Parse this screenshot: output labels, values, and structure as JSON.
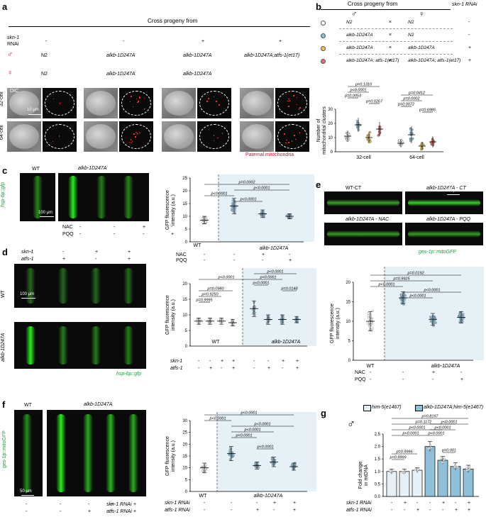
{
  "panel_a": {
    "letter": "a",
    "header": "Cross progeny from",
    "row_labels": {
      "rnai_l1": "skn-1",
      "rnai_l2": "RNAi",
      "male": "♂",
      "herm": "♀",
      "cell32": "32-cell",
      "cell64": "64-cell"
    },
    "rnai": [
      "-",
      "-",
      "+",
      "+"
    ],
    "male": [
      "N2",
      "alkb-1D247A",
      "alkb-1D247A",
      "alkb-1D247A;atfs-1(et17)"
    ],
    "herm": [
      "N2",
      "alkb-1D247A",
      "alkb-1D247A",
      ""
    ],
    "dic_label": "DIC",
    "scale": "10 μm",
    "mito_label": "Paternal mitochondria"
  },
  "panel_b": {
    "letter": "b",
    "header": "Cross progeny from",
    "col_male": "♂",
    "col_herm": "♀",
    "col_rnai": "skn-1 RNAi",
    "rows": [
      {
        "male": "N2",
        "herm": "N2",
        "rnai": "-",
        "color": "#ffffff"
      },
      {
        "male": "alkb-1D247A",
        "herm": "N2",
        "rnai": "-",
        "color": "#8fbfd9"
      },
      {
        "male": "alkb-1D247A",
        "herm": "alkb-1D247A",
        "rnai": "+",
        "color": "#f5c35a"
      },
      {
        "male": "alkb-1D247A; atfs-1(et17)",
        "herm": "alkb-1D247A; atfs-1(et17)",
        "rnai": "+",
        "color": "#e8736b"
      }
    ],
    "cross": "×",
    "ylabel1": "Number of",
    "ylabel2": "mitochondrial clusters",
    "pvals": [
      "p=0.1310",
      "p<0.0001",
      "p=0.0053",
      "p=0.0267",
      "p=0.0412",
      "p=0.0002",
      "p=0.0072",
      "p=0.6985"
    ],
    "groups": [
      "32-cell",
      "64-cell"
    ]
  },
  "panel_c": {
    "letter": "c",
    "wt": "WT",
    "mut": "alkb-1D247A",
    "reporter": "hsp-6p::gfp",
    "scale": "100 μm",
    "nac": "NAC",
    "pqq": "PQQ",
    "nac_vals": [
      "-",
      "-",
      "+",
      "-"
    ],
    "pqq_vals": [
      "-",
      "-",
      "-",
      "+"
    ],
    "ylabel1": "GFP fluorescence",
    "ylabel2": "intensity (a.u.)",
    "pvals": [
      "p=0.0002",
      "p<0.0001",
      "p<0.0001",
      "p<0.0001"
    ],
    "wt_tag": "WT",
    "mut_tag": "alkb-1D247A"
  },
  "panel_d": {
    "letter": "d",
    "skn": "skn-1",
    "atfs": "atfs-1",
    "skn_vals": [
      "-",
      "-",
      "+",
      "+"
    ],
    "atfs_vals": [
      "-",
      "+",
      "-",
      "+"
    ],
    "wt": "WT",
    "mut": "alkb-1D247A",
    "reporter": "hsp-6p::gfp",
    "scale": "100 μm",
    "ylabel1": "GFP fluorescence",
    "ylabel2": "intensity (a.u.)",
    "pvals": [
      "p<0.0001",
      "p=0.0980",
      "p=0.9250",
      "p=0.9995",
      "p<0.0001",
      "p<0.0001",
      "p<0.0001",
      "p=0.0148"
    ],
    "chart_skn": [
      "-",
      "-",
      "+",
      "+",
      "-",
      "-",
      "+",
      "+"
    ],
    "chart_atfs": [
      "-",
      "+",
      "-",
      "+",
      "-",
      "+",
      "-",
      "+"
    ],
    "wt_tag": "WT",
    "mut_tag": "alkb-1D247A"
  },
  "panel_e": {
    "letter": "e",
    "labels": [
      "WT-CT",
      "alkb-1D247A - CT",
      "alkb-1D247A - NAC",
      "alkb-1D247A - PQQ"
    ],
    "scale": "50 μm",
    "reporter": "ges-1p::mitoGFP",
    "ylabel1": "GFP fluorescence",
    "ylabel2": "intensity (a.u.)",
    "pvals": [
      "p=0.0192",
      "p=0.9925",
      "p<0.0001",
      "p<0.0001",
      "p<0.0001"
    ],
    "nac": "NAC",
    "pqq": "PQQ",
    "nac_vals": [
      "-",
      "-",
      "+",
      "-"
    ],
    "pqq_vals": [
      "-",
      "-",
      "-",
      "+"
    ],
    "wt_tag": "WT",
    "mut_tag": "alkb-1D247A"
  },
  "panel_f": {
    "letter": "f",
    "wt": "WT",
    "mut": "alkb-1D247A",
    "reporter": "ges-1p::mitoGFP",
    "scale": "50 μm",
    "skn": "skn-1 RNAi",
    "atfs": "atfs-1 RNAi",
    "skn_vals": [
      "-",
      "-",
      "-",
      "+",
      "+"
    ],
    "atfs_vals": [
      "-",
      "-",
      "+",
      "-",
      "+"
    ],
    "ylabel1": "GFP fluorescence",
    "ylabel2": "intensity (a.u.)",
    "pvals": [
      "p<0.0001",
      "p<0.0001",
      "p<0.0001",
      "p<0.0001",
      "p<0.0001",
      "p<0.0001"
    ],
    "chart_skn": [
      "-",
      "-",
      "-",
      "+",
      "+"
    ],
    "chart_atfs": [
      "-",
      "-",
      "+",
      "-",
      "+"
    ],
    "wt_tag": "WT",
    "mut_tag": "alkb-1D247A"
  },
  "panel_g": {
    "letter": "g",
    "legend1": "him-5(e1467)",
    "legend2": "alkb-1D247A;him-5(e1467)",
    "male": "♂",
    "ylabel1": "Fold change",
    "ylabel2": "in mtDNA",
    "skn": "skn-1 RNAi",
    "atfs": "atfs-1 RNAi",
    "skn_vals": [
      "-",
      "+",
      "-",
      "-",
      "+",
      "-",
      "+"
    ],
    "atfs_vals": [
      "-",
      "-",
      "+",
      "-",
      "-",
      "+",
      "+"
    ],
    "pvals": [
      "p=0.8197",
      "p=0.1172",
      "p<0.0001",
      "p<0.0001",
      "p<0.0001",
      "p<0.0001",
      "p<0.0001",
      "p=0.9996",
      "p=0.9999",
      "p=0.001"
    ]
  },
  "chart_data": [
    {
      "type": "scatter",
      "panel": "b",
      "ylabel": "Number of mitochondrial clusters",
      "ylim": [
        0,
        30
      ],
      "yticks": [
        0,
        10,
        20,
        30
      ],
      "categories": [
        "32-cell",
        "64-cell"
      ],
      "series": [
        {
          "name": "N2 × N2",
          "means": [
            11,
            6
          ],
          "sd": [
            4,
            3
          ]
        },
        {
          "name": "alkb-1D247A × N2",
          "means": [
            19,
            12
          ],
          "sd": [
            5,
            6
          ]
        },
        {
          "name": "alkb-1D247A × alkb-1D247A",
          "means": [
            10,
            4
          ],
          "sd": [
            4,
            3
          ]
        },
        {
          "name": "alkb-1D247A; atfs-1(et17) × alkb-1D247A; atfs-1(et17)",
          "means": [
            16,
            7
          ],
          "sd": [
            5,
            4
          ]
        }
      ]
    },
    {
      "type": "scatter",
      "panel": "c",
      "ylabel": "GFP fluorescence intensity (a.u.)",
      "ylim": [
        0,
        25
      ],
      "yticks": [
        0,
        5,
        10,
        15,
        20,
        25
      ],
      "categories": [
        "WT",
        "alkb-1D247A",
        "alkb-1D247A NAC",
        "alkb-1D247A PQQ"
      ],
      "values": [
        8.5,
        14,
        11,
        10
      ],
      "sd": [
        1.5,
        3,
        1.5,
        1
      ]
    },
    {
      "type": "scatter",
      "panel": "d",
      "ylabel": "GFP fluorescence intensity (a.u.)",
      "ylim": [
        0,
        20
      ],
      "yticks": [
        0,
        5,
        10,
        15,
        20
      ],
      "values": [
        8,
        8,
        8,
        7.5,
        12,
        8.5,
        8.5,
        8.5
      ],
      "sd": [
        1,
        1,
        1,
        1,
        2.5,
        1.5,
        1.5,
        1
      ]
    },
    {
      "type": "scatter",
      "panel": "e",
      "ylabel": "GFP fluorescence intensity (a.u.)",
      "ylim": [
        0,
        20
      ],
      "yticks": [
        0,
        5,
        10,
        15,
        20
      ],
      "values": [
        10,
        16,
        10.5,
        11
      ],
      "sd": [
        2.5,
        1.5,
        1.5,
        1.5
      ]
    },
    {
      "type": "scatter",
      "panel": "f",
      "ylabel": "GFP fluorescence intensity (a.u.)",
      "ylim": [
        0,
        30
      ],
      "yticks": [
        0,
        5,
        10,
        15,
        20,
        25,
        30
      ],
      "values": [
        10,
        16,
        11,
        12.5,
        10.5
      ],
      "sd": [
        2,
        3,
        1.5,
        2,
        1.5
      ]
    },
    {
      "type": "bar",
      "panel": "g",
      "ylabel": "Fold change in mtDNA",
      "ylim": [
        0,
        2.5
      ],
      "yticks": [
        0.0,
        0.5,
        1.0,
        1.5,
        2.0,
        2.5
      ],
      "values": [
        1.0,
        1.0,
        1.05,
        2.0,
        1.45,
        1.2,
        1.1
      ],
      "sd": [
        0.1,
        0.1,
        0.1,
        0.2,
        0.15,
        0.15,
        0.15
      ]
    }
  ]
}
